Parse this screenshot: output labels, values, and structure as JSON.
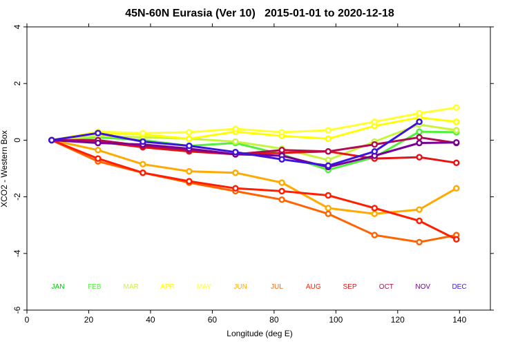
{
  "chart_data": {
    "type": "line",
    "title": "45N-60N Eurasia (Ver 10)   2015-01-01 to 2020-12-18",
    "xlabel": "Longitude (deg E)",
    "ylabel": "XCO2 - Western Box",
    "xlim": [
      0,
      150
    ],
    "ylim": [
      -6,
      4
    ],
    "xticks": [
      0,
      20,
      40,
      60,
      80,
      100,
      120,
      140
    ],
    "yticks": [
      -6,
      -4,
      -2,
      0,
      2,
      4
    ],
    "x": [
      8,
      23,
      37.5,
      52.5,
      67.5,
      82.5,
      97.5,
      112.5,
      127,
      139
    ],
    "legend_y": -5.15,
    "series": [
      {
        "name": "JAN",
        "color": "#00c800",
        "values": [
          0,
          null,
          null,
          null,
          null,
          null,
          null,
          null,
          null,
          null
        ]
      },
      {
        "name": "FEB",
        "color": "#50f03c",
        "values": [
          0,
          0.1,
          0.0,
          -0.2,
          -0.1,
          -0.5,
          -1.05,
          -0.6,
          0.3,
          0.28
        ]
      },
      {
        "name": "MAR",
        "color": "#c8f53c",
        "values": [
          0,
          0.15,
          0.1,
          0.05,
          -0.05,
          -0.3,
          -0.7,
          -0.05,
          0.55,
          0.35
        ]
      },
      {
        "name": "APR",
        "color": "#ffff00",
        "values": [
          0,
          0.25,
          0.2,
          0.05,
          0.3,
          0.15,
          0.05,
          0.5,
          0.8,
          0.65
        ]
      },
      {
        "name": "MAY",
        "color": "#ffff32",
        "values": [
          0,
          0.3,
          0.25,
          0.28,
          0.4,
          0.28,
          0.35,
          0.65,
          0.95,
          1.15
        ]
      },
      {
        "name": "JUN",
        "color": "#ffaa00",
        "values": [
          0,
          -0.35,
          -0.85,
          -1.1,
          -1.15,
          -1.5,
          -2.4,
          -2.6,
          -2.45,
          -1.7
        ]
      },
      {
        "name": "JUL",
        "color": "#ff6400",
        "values": [
          0,
          -0.75,
          -1.15,
          -1.5,
          -1.8,
          -2.1,
          -2.6,
          -3.35,
          -3.6,
          -3.35
        ]
      },
      {
        "name": "AUG",
        "color": "#ff1e00",
        "values": [
          0,
          -0.65,
          -1.15,
          -1.45,
          -1.7,
          -1.8,
          -1.95,
          -2.4,
          -2.85,
          -3.5
        ]
      },
      {
        "name": "SEP",
        "color": "#e61414",
        "values": [
          0,
          -0.05,
          -0.25,
          -0.4,
          -0.5,
          -0.45,
          -0.4,
          -0.65,
          -0.6,
          -0.8
        ]
      },
      {
        "name": "OCT",
        "color": "#b40a50",
        "values": [
          0,
          0.0,
          -0.2,
          -0.35,
          -0.5,
          -0.35,
          -0.4,
          -0.15,
          0.1,
          -0.1
        ]
      },
      {
        "name": "NOV",
        "color": "#780096",
        "values": [
          0,
          -0.1,
          -0.15,
          -0.3,
          -0.5,
          -0.55,
          -0.95,
          -0.55,
          -0.1,
          -0.08
        ]
      },
      {
        "name": "DEC",
        "color": "#3c14dc",
        "values": [
          0,
          0.25,
          -0.05,
          -0.2,
          -0.42,
          -0.68,
          -0.9,
          -0.4,
          0.65,
          null
        ]
      }
    ]
  }
}
